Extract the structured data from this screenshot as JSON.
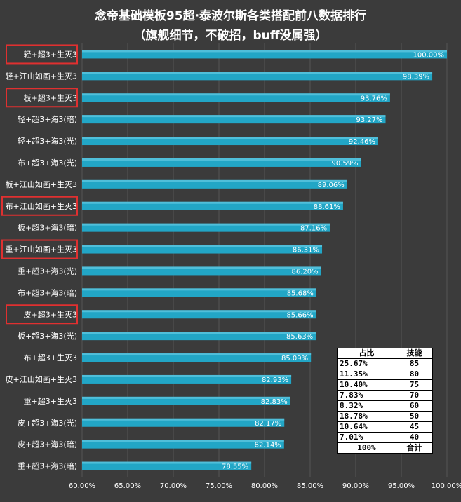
{
  "chart_data": {
    "type": "bar",
    "orientation": "horizontal",
    "title": "念帝基础模板95超·泰波尔斯各类搭配前八数据排行",
    "subtitle": "（旗舰细节，不破招，buff没属强）",
    "categories": [
      "轻+超3+生灭3",
      "轻+江山如画+生灭3",
      "板+超3+生灭3",
      "轻+超3+海3(暗)",
      "轻+超3+海3(光)",
      "布+超3+海3(光)",
      "板+江山如画+生灭3",
      "布+江山如画+生灭3",
      "板+超3+海3(暗)",
      "重+江山如画+生灭3",
      "重+超3+海3(光)",
      "布+超3+海3(暗)",
      "皮+超3+生灭3",
      "板+超3+海3(光)",
      "布+超3+生灭3",
      "皮+江山如画+生灭3",
      "重+超3+生灭3",
      "皮+超3+海3(光)",
      "皮+超3+海3(暗)",
      "重+超3+海3(暗)"
    ],
    "values": [
      100.0,
      98.39,
      93.76,
      93.27,
      92.46,
      90.59,
      89.06,
      88.61,
      87.16,
      86.31,
      86.2,
      85.68,
      85.66,
      85.63,
      85.09,
      82.93,
      82.83,
      82.17,
      82.14,
      78.55
    ],
    "value_labels": [
      "100.00%",
      "98.39%",
      "93.76%",
      "93.27%",
      "92.46%",
      "90.59%",
      "89.06%",
      "88.61%",
      "87.16%",
      "86.31%",
      "86.20%",
      "85.68%",
      "85.66%",
      "85.63%",
      "85.09%",
      "82.93%",
      "82.83%",
      "82.17%",
      "82.14%",
      "78.55%"
    ],
    "highlighted": [
      "轻+超3+生灭3",
      "板+超3+生灭3",
      "布+江山如画+生灭3",
      "重+江山如画+生灭3",
      "皮+超3+生灭3"
    ],
    "xlim": [
      60,
      100
    ],
    "xticks": [
      "60.00%",
      "65.00%",
      "70.00%",
      "75.00%",
      "80.00%",
      "85.00%",
      "90.00%",
      "95.00%",
      "100.00%"
    ],
    "grid": true,
    "colors": {
      "bar": "#22a6c6",
      "highlight_box": "#e03030",
      "background": "#3b3b3b",
      "grid": "#555555",
      "text": "#ffffff"
    }
  },
  "table": {
    "headers": [
      "占比",
      "技能"
    ],
    "rows": [
      [
        "25.67%",
        "85"
      ],
      [
        "11.35%",
        "80"
      ],
      [
        "10.40%",
        "75"
      ],
      [
        "7.83%",
        "70"
      ],
      [
        "8.32%",
        "60"
      ],
      [
        "18.78%",
        "50"
      ],
      [
        "10.64%",
        "45"
      ],
      [
        "7.01%",
        "40"
      ],
      [
        "100%",
        "合计"
      ]
    ]
  }
}
